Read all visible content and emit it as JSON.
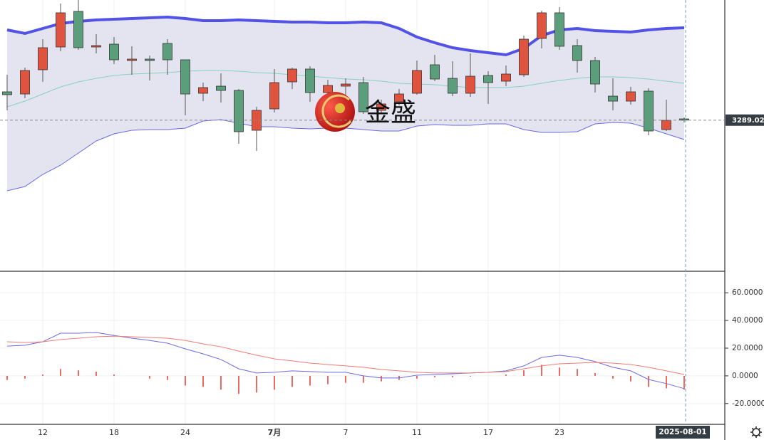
{
  "watermark": "金盛",
  "chart_data": [
    {
      "type": "candlestick",
      "categories": [
        null,
        null,
        "12",
        null,
        null,
        null,
        "18",
        null,
        null,
        null,
        "24",
        null,
        null,
        null,
        null,
        "7月",
        null,
        null,
        null,
        "7",
        null,
        null,
        null,
        "11",
        null,
        null,
        null,
        "17",
        null,
        null,
        null,
        "23",
        null,
        null,
        null,
        null,
        null,
        null,
        "2025-08-01"
      ],
      "open": [
        3320.8,
        3318.4,
        3345.6,
        3371.2,
        3411.2,
        3371.2,
        3374.4,
        3356,
        3357.6,
        3375.2,
        3356.8,
        3319.2,
        3327.2,
        3322.4,
        3277.6,
        3301.6,
        3332,
        3346.4,
        3320,
        3327.2,
        3331.2,
        3300,
        3309.6,
        3319.2,
        3351.2,
        3336,
        3319.2,
        3339.2,
        3332.8,
        3340,
        3380.8,
        3409.6,
        3372.8,
        3356,
        3316,
        3310.4,
        3321.6,
        3278.4,
        3290.4
      ],
      "high": [
        3340,
        3348,
        3380,
        3420,
        3424,
        3385.6,
        3382.4,
        3372,
        3361.6,
        3380,
        3356.8,
        3331.2,
        3341.6,
        3324,
        3304,
        3346.4,
        3348,
        3349.6,
        3334.4,
        3336,
        3337.6,
        3312,
        3324,
        3356,
        3362.4,
        3355.2,
        3364,
        3344,
        3350.4,
        3384,
        3412,
        3416,
        3380,
        3360,
        3336,
        3326.4,
        3324.8,
        3312,
        3292
      ],
      "low": [
        3300,
        3313.6,
        3332,
        3366.4,
        3368,
        3364,
        3352,
        3340,
        3333.6,
        3340,
        3294.4,
        3310.4,
        3308.8,
        3262.4,
        3254.4,
        3297.6,
        3324,
        3309.6,
        3308,
        3304,
        3296,
        3296,
        3305.6,
        3317.6,
        3332.8,
        3316,
        3315.2,
        3307.2,
        3327.2,
        3337.6,
        3369.6,
        3368,
        3342.4,
        3320,
        3300,
        3306.4,
        3272,
        3276.8,
        3286.4
      ],
      "close": [
        3317.6,
        3344.8,
        3370.4,
        3409.6,
        3370.4,
        3372.8,
        3356.8,
        3357.6,
        3356,
        3356.8,
        3318.4,
        3325.6,
        3322.4,
        3276,
        3300,
        3331.2,
        3346.4,
        3320,
        3328,
        3329.6,
        3298.4,
        3307.2,
        3318.4,
        3344.8,
        3335.2,
        3319.2,
        3338.4,
        3331.2,
        3340.8,
        3380,
        3409.6,
        3372,
        3356,
        3329.6,
        3310.4,
        3320.8,
        3276.8,
        3288.8,
        3289.02
      ],
      "up_color": "#e0533f",
      "down_color": "#5a9e7c",
      "band_fill": "#e4e4f0",
      "ylim": [
        3120,
        3424
      ],
      "series": [
        {
          "color": "#5252e6",
          "values": [
            3390.4,
            3386.4,
            3392,
            3397.6,
            3400,
            3401.6,
            3402.4,
            3403.2,
            3404,
            3404.8,
            3403.2,
            3400.8,
            3400.8,
            3401.6,
            3400.8,
            3400,
            3399.2,
            3399.2,
            3398.4,
            3398.4,
            3399.2,
            3398.4,
            3392,
            3382.4,
            3376,
            3370.4,
            3367.2,
            3364.8,
            3362.4,
            3369.6,
            3384,
            3390.4,
            3392,
            3389.6,
            3388.8,
            3388,
            3390.4,
            3392,
            3392.8
          ]
        },
        {
          "color": "#86d2c2",
          "values": [
            3304,
            3310.4,
            3318.4,
            3326.4,
            3332,
            3336,
            3339.2,
            3340.8,
            3341.6,
            3342.4,
            3344,
            3344.8,
            3344.8,
            3344,
            3342.4,
            3341.6,
            3340,
            3338.4,
            3336.8,
            3335.2,
            3334.4,
            3332.8,
            3330.4,
            3329.6,
            3328.8,
            3327.2,
            3325.6,
            3325.6,
            3325.6,
            3327.2,
            3330.4,
            3333.6,
            3336,
            3337.6,
            3337.6,
            3336.8,
            3335.2,
            3332.8,
            3330.4
          ]
        },
        {
          "color": "#6a6ae0",
          "values": [
            3209.6,
            3214.4,
            3228,
            3238.4,
            3252,
            3265.6,
            3273.6,
            3277.6,
            3278.4,
            3278.4,
            3280,
            3288,
            3289.6,
            3285.6,
            3281.6,
            3281.6,
            3280,
            3279.2,
            3280,
            3280,
            3278.4,
            3276.8,
            3276.8,
            3282.4,
            3284,
            3283.2,
            3283.2,
            3284.8,
            3284.8,
            3278.4,
            3275.2,
            3275.2,
            3276,
            3284.8,
            3286.4,
            3285.6,
            3280,
            3273.6,
            3267.2
          ]
        }
      ]
    },
    {
      "type": "macd",
      "ylim": [
        -35,
        75
      ],
      "yticks": [
        {
          "value": 60,
          "label": "60.0000"
        },
        {
          "value": 40,
          "label": "40.0000"
        },
        {
          "value": 20,
          "label": "20.0000"
        },
        {
          "value": 0,
          "label": "0.0000"
        },
        {
          "value": -20,
          "label": "-20.0000"
        }
      ],
      "grid": true,
      "series": [
        {
          "color": "#6b6be0",
          "values": [
            21.5,
            22.1,
            24.6,
            30.8,
            30.8,
            31.3,
            29.2,
            27.2,
            25.6,
            23.6,
            19.5,
            15.9,
            11.8,
            5.1,
            2.1,
            2.6,
            3.6,
            3.1,
            2.6,
            2.6,
            0,
            -1.5,
            -1.5,
            0.5,
            1,
            1.5,
            2.1,
            2.6,
            3.6,
            7.2,
            13.3,
            14.9,
            13.3,
            10.3,
            6.2,
            3.6,
            -2.6,
            -5.6,
            -9.2
          ]
        },
        {
          "color": "#ef7a72",
          "values": [
            24.6,
            24.1,
            24.6,
            26.2,
            27.2,
            28.2,
            28.7,
            28.2,
            27.7,
            27.2,
            25.6,
            23.1,
            21,
            17.9,
            14.9,
            12.3,
            10.8,
            9.2,
            8.2,
            7.2,
            6.2,
            4.6,
            3.6,
            2.6,
            2.1,
            2.1,
            2.1,
            2.6,
            3.1,
            5.1,
            7.2,
            8.7,
            9.2,
            9.7,
            9.2,
            8.2,
            6.2,
            3.6,
            1
          ]
        }
      ],
      "histogram": {
        "color": "#ec6a62",
        "values": [
          -3,
          -2,
          1,
          5,
          4,
          3,
          1,
          0,
          -2,
          -3,
          -7,
          -8,
          -10,
          -13,
          -12,
          -10,
          -8,
          -7,
          -6,
          -5,
          -5,
          -4,
          -3,
          -2,
          -1,
          -1,
          -0.5,
          0,
          1,
          4,
          8,
          6,
          5,
          2,
          -2,
          -4,
          -8,
          -9,
          -10
        ]
      }
    }
  ]
}
